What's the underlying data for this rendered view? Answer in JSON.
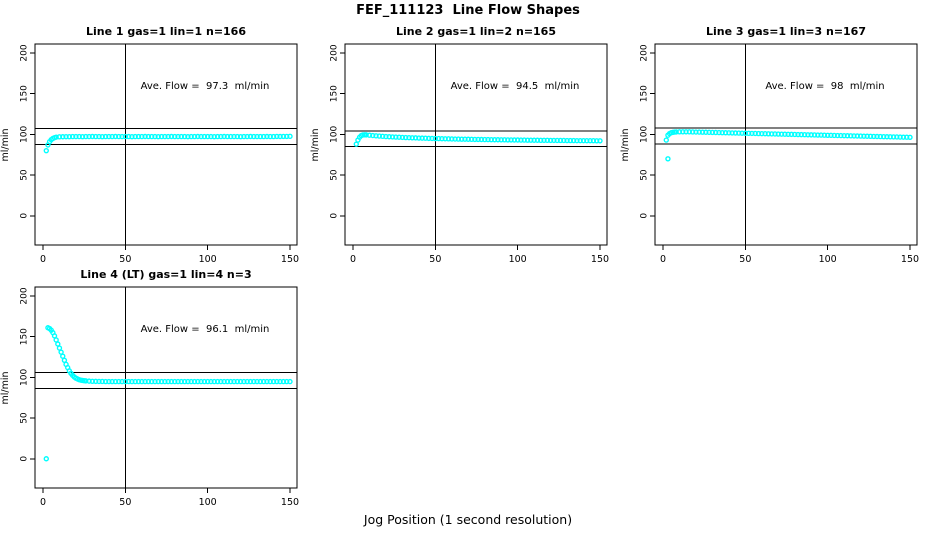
{
  "figure": {
    "title": "FEF_111123  Line Flow Shapes",
    "xlabel": "Jog Position (1 second resolution)",
    "background_color": "#ffffff",
    "line_color": "#000000",
    "point_color": "#00ffff",
    "legend": "none",
    "grid": "off"
  },
  "chart_data": [
    {
      "type": "scatter",
      "title": "Line 1 gas=1 lin=1 n=166",
      "ylabel": "ml/min",
      "annotation": "Ave. Flow =  97.3  ml/min",
      "ave_flow_ml_min": 97.3,
      "n": 166,
      "xticks": [
        0,
        50,
        100,
        150
      ],
      "yticks": [
        0,
        50,
        100,
        150,
        200
      ],
      "xlim": [
        -5,
        154
      ],
      "ylim": [
        -36,
        211
      ],
      "vline_x": 50,
      "hlines": [
        107.0,
        87.6
      ],
      "points": [
        [
          2,
          80
        ],
        [
          3,
          87
        ],
        [
          4,
          91
        ],
        [
          5,
          93.5
        ],
        [
          6,
          95
        ],
        [
          7,
          96
        ],
        [
          8,
          96.6
        ],
        [
          10,
          97
        ],
        [
          12,
          97.1
        ],
        [
          14,
          97.2
        ],
        [
          16,
          97.2
        ],
        [
          18,
          97.3
        ],
        [
          20,
          97.3
        ],
        [
          22,
          97.3
        ],
        [
          24,
          97.2
        ],
        [
          26,
          97.3
        ],
        [
          28,
          97.3
        ],
        [
          30,
          97.4
        ],
        [
          32,
          97.3
        ],
        [
          34,
          97.3
        ],
        [
          36,
          97.2
        ],
        [
          38,
          97.3
        ],
        [
          40,
          97.3
        ],
        [
          42,
          97.3
        ],
        [
          44,
          97.4
        ],
        [
          46,
          97.3
        ],
        [
          48,
          97.3
        ],
        [
          50,
          97.3
        ],
        [
          52,
          97.3
        ],
        [
          54,
          97.2
        ],
        [
          56,
          97.3
        ],
        [
          58,
          97.3
        ],
        [
          60,
          97.3
        ],
        [
          62,
          97.4
        ],
        [
          64,
          97.3
        ],
        [
          66,
          97.3
        ],
        [
          68,
          97.3
        ],
        [
          70,
          97.2
        ],
        [
          72,
          97.3
        ],
        [
          74,
          97.3
        ],
        [
          76,
          97.3
        ],
        [
          78,
          97.4
        ],
        [
          80,
          97.3
        ],
        [
          82,
          97.3
        ],
        [
          84,
          97.3
        ],
        [
          86,
          97.3
        ],
        [
          88,
          97.2
        ],
        [
          90,
          97.3
        ],
        [
          92,
          97.3
        ],
        [
          94,
          97.4
        ],
        [
          96,
          97.3
        ],
        [
          98,
          97.3
        ],
        [
          100,
          97.3
        ],
        [
          102,
          97.3
        ],
        [
          104,
          97.2
        ],
        [
          106,
          97.3
        ],
        [
          108,
          97.3
        ],
        [
          110,
          97.4
        ],
        [
          112,
          97.3
        ],
        [
          114,
          97.3
        ],
        [
          116,
          97.3
        ],
        [
          118,
          97.3
        ],
        [
          120,
          97.2
        ],
        [
          122,
          97.3
        ],
        [
          124,
          97.3
        ],
        [
          126,
          97.4
        ],
        [
          128,
          97.3
        ],
        [
          130,
          97.3
        ],
        [
          132,
          97.3
        ],
        [
          134,
          97.3
        ],
        [
          136,
          97.4
        ],
        [
          138,
          97.3
        ],
        [
          140,
          97.3
        ],
        [
          142,
          97.5
        ],
        [
          144,
          97.4
        ],
        [
          146,
          97.5
        ],
        [
          148,
          97.5
        ],
        [
          150,
          97.6
        ]
      ]
    },
    {
      "type": "scatter",
      "title": "Line 2 gas=1 lin=2 n=165",
      "ylabel": "ml/min",
      "annotation": "Ave. Flow =  94.5  ml/min",
      "ave_flow_ml_min": 94.5,
      "n": 165,
      "xticks": [
        0,
        50,
        100,
        150
      ],
      "yticks": [
        0,
        50,
        100,
        150,
        200
      ],
      "xlim": [
        -5,
        154
      ],
      "ylim": [
        -36,
        211
      ],
      "vline_x": 50,
      "hlines": [
        104.0,
        85.1
      ],
      "points": [
        [
          2,
          88
        ],
        [
          3,
          93
        ],
        [
          4,
          96.5
        ],
        [
          5,
          98.5
        ],
        [
          6,
          99.3
        ],
        [
          7,
          99.5
        ],
        [
          8,
          99.4
        ],
        [
          10,
          99
        ],
        [
          12,
          98.6
        ],
        [
          14,
          98.2
        ],
        [
          16,
          97.9
        ],
        [
          18,
          97.6
        ],
        [
          20,
          97.3
        ],
        [
          22,
          97.1
        ],
        [
          24,
          96.9
        ],
        [
          26,
          96.7
        ],
        [
          28,
          96.5
        ],
        [
          30,
          96.3
        ],
        [
          32,
          96.1
        ],
        [
          34,
          96
        ],
        [
          36,
          95.8
        ],
        [
          38,
          95.7
        ],
        [
          40,
          95.5
        ],
        [
          42,
          95.4
        ],
        [
          44,
          95.3
        ],
        [
          46,
          95.1
        ],
        [
          48,
          95
        ],
        [
          50,
          94.9
        ],
        [
          52,
          94.8
        ],
        [
          54,
          94.7
        ],
        [
          56,
          94.6
        ],
        [
          58,
          94.5
        ],
        [
          60,
          94.4
        ],
        [
          62,
          94.3
        ],
        [
          64,
          94.2
        ],
        [
          66,
          94.1
        ],
        [
          68,
          94.1
        ],
        [
          70,
          94
        ],
        [
          72,
          93.9
        ],
        [
          74,
          93.8
        ],
        [
          76,
          93.8
        ],
        [
          78,
          93.7
        ],
        [
          80,
          93.6
        ],
        [
          82,
          93.6
        ],
        [
          84,
          93.5
        ],
        [
          86,
          93.4
        ],
        [
          88,
          93.4
        ],
        [
          90,
          93.3
        ],
        [
          92,
          93.3
        ],
        [
          94,
          93.2
        ],
        [
          96,
          93.2
        ],
        [
          98,
          93.1
        ],
        [
          100,
          93.1
        ],
        [
          102,
          93
        ],
        [
          104,
          93
        ],
        [
          106,
          92.9
        ],
        [
          108,
          92.9
        ],
        [
          110,
          92.8
        ],
        [
          112,
          92.8
        ],
        [
          114,
          92.7
        ],
        [
          116,
          92.7
        ],
        [
          118,
          92.7
        ],
        [
          120,
          92.6
        ],
        [
          122,
          92.6
        ],
        [
          124,
          92.5
        ],
        [
          126,
          92.5
        ],
        [
          128,
          92.5
        ],
        [
          130,
          92.4
        ],
        [
          132,
          92.4
        ],
        [
          134,
          92.4
        ],
        [
          136,
          92.3
        ],
        [
          138,
          92.3
        ],
        [
          140,
          92.3
        ],
        [
          142,
          92.2
        ],
        [
          144,
          92.2
        ],
        [
          146,
          92.2
        ],
        [
          148,
          92.1
        ],
        [
          150,
          92.1
        ]
      ]
    },
    {
      "type": "scatter",
      "title": "Line 3 gas=1 lin=3 n=167",
      "ylabel": "ml/min",
      "annotation": "Ave. Flow =  98  ml/min",
      "ave_flow_ml_min": 98,
      "n": 167,
      "xticks": [
        0,
        50,
        100,
        150
      ],
      "yticks": [
        0,
        50,
        100,
        150,
        200
      ],
      "xlim": [
        -5,
        154
      ],
      "ylim": [
        -36,
        211
      ],
      "vline_x": 50,
      "hlines": [
        107.8,
        88.2
      ],
      "points": [
        [
          3,
          70
        ],
        [
          2,
          93
        ],
        [
          3,
          99
        ],
        [
          4,
          101
        ],
        [
          5,
          102
        ],
        [
          6,
          102.5
        ],
        [
          7,
          102.8
        ],
        [
          8,
          103
        ],
        [
          10,
          103.1
        ],
        [
          12,
          103.2
        ],
        [
          14,
          103.2
        ],
        [
          16,
          103.1
        ],
        [
          18,
          103
        ],
        [
          20,
          102.9
        ],
        [
          22,
          102.8
        ],
        [
          24,
          102.7
        ],
        [
          26,
          102.6
        ],
        [
          28,
          102.5
        ],
        [
          30,
          102.4
        ],
        [
          32,
          102.3
        ],
        [
          34,
          102.2
        ],
        [
          36,
          102.1
        ],
        [
          38,
          102
        ],
        [
          40,
          101.9
        ],
        [
          42,
          101.8
        ],
        [
          44,
          101.7
        ],
        [
          46,
          101.6
        ],
        [
          48,
          101.5
        ],
        [
          50,
          101.4
        ],
        [
          52,
          101.3
        ],
        [
          54,
          101.2
        ],
        [
          56,
          101.1
        ],
        [
          58,
          101
        ],
        [
          60,
          100.9
        ],
        [
          62,
          100.8
        ],
        [
          64,
          100.7
        ],
        [
          66,
          100.6
        ],
        [
          68,
          100.5
        ],
        [
          70,
          100.4
        ],
        [
          72,
          100.3
        ],
        [
          74,
          100.2
        ],
        [
          76,
          100.1
        ],
        [
          78,
          100
        ],
        [
          80,
          99.9
        ],
        [
          82,
          99.8
        ],
        [
          84,
          99.7
        ],
        [
          86,
          99.6
        ],
        [
          88,
          99.5
        ],
        [
          90,
          99.4
        ],
        [
          92,
          99.3
        ],
        [
          94,
          99.2
        ],
        [
          96,
          99.1
        ],
        [
          98,
          99
        ],
        [
          100,
          98.9
        ],
        [
          102,
          98.8
        ],
        [
          104,
          98.7
        ],
        [
          106,
          98.6
        ],
        [
          108,
          98.5
        ],
        [
          110,
          98.4
        ],
        [
          112,
          98.3
        ],
        [
          114,
          98.2
        ],
        [
          116,
          98.1
        ],
        [
          118,
          98
        ],
        [
          120,
          97.9
        ],
        [
          122,
          97.8
        ],
        [
          124,
          97.7
        ],
        [
          126,
          97.6
        ],
        [
          128,
          97.5
        ],
        [
          130,
          97.4
        ],
        [
          132,
          97.3
        ],
        [
          134,
          97.2
        ],
        [
          136,
          97.1
        ],
        [
          138,
          97
        ],
        [
          140,
          96.9
        ],
        [
          142,
          96.8
        ],
        [
          144,
          96.7
        ],
        [
          146,
          96.6
        ],
        [
          148,
          96.5
        ],
        [
          150,
          96.4
        ]
      ]
    },
    {
      "type": "scatter",
      "title": "Line 4 (LT) gas=1 lin=4 n=3",
      "ylabel": "ml/min",
      "annotation": "Ave. Flow =  96.1  ml/min",
      "ave_flow_ml_min": 96.1,
      "n": 3,
      "xticks": [
        0,
        50,
        100,
        150
      ],
      "yticks": [
        0,
        50,
        100,
        150,
        200
      ],
      "xlim": [
        -5,
        154
      ],
      "ylim": [
        -36,
        211
      ],
      "vline_x": 50,
      "hlines": [
        105.7,
        86.5
      ],
      "points": [
        [
          2,
          0
        ],
        [
          3,
          161
        ],
        [
          4,
          160
        ],
        [
          5,
          158
        ],
        [
          6,
          155
        ],
        [
          7,
          151
        ],
        [
          8,
          146
        ],
        [
          9,
          141
        ],
        [
          10,
          136
        ],
        [
          11,
          131
        ],
        [
          12,
          126
        ],
        [
          13,
          121
        ],
        [
          14,
          116
        ],
        [
          15,
          112
        ],
        [
          16,
          108
        ],
        [
          17,
          105
        ],
        [
          18,
          102.5
        ],
        [
          19,
          100.5
        ],
        [
          20,
          99
        ],
        [
          21,
          98
        ],
        [
          22,
          97.2
        ],
        [
          23,
          96.6
        ],
        [
          24,
          96.2
        ],
        [
          25,
          95.9
        ],
        [
          26,
          95.7
        ],
        [
          28,
          95.4
        ],
        [
          30,
          95.2
        ],
        [
          32,
          95.1
        ],
        [
          34,
          95
        ],
        [
          36,
          95
        ],
        [
          38,
          94.9
        ],
        [
          40,
          94.9
        ],
        [
          42,
          94.9
        ],
        [
          44,
          94.8
        ],
        [
          46,
          94.9
        ],
        [
          48,
          94.8
        ],
        [
          50,
          94.8
        ],
        [
          52,
          94.9
        ],
        [
          54,
          94.8
        ],
        [
          56,
          94.8
        ],
        [
          58,
          94.9
        ],
        [
          60,
          94.8
        ],
        [
          62,
          94.8
        ],
        [
          64,
          94.9
        ],
        [
          66,
          94.8
        ],
        [
          68,
          94.8
        ],
        [
          70,
          94.9
        ],
        [
          72,
          94.8
        ],
        [
          74,
          94.8
        ],
        [
          76,
          94.9
        ],
        [
          78,
          94.8
        ],
        [
          80,
          94.8
        ],
        [
          82,
          94.9
        ],
        [
          84,
          94.8
        ],
        [
          86,
          94.8
        ],
        [
          88,
          94.9
        ],
        [
          90,
          94.8
        ],
        [
          92,
          94.8
        ],
        [
          94,
          94.9
        ],
        [
          96,
          94.8
        ],
        [
          98,
          94.8
        ],
        [
          100,
          94.9
        ],
        [
          102,
          94.8
        ],
        [
          104,
          94.8
        ],
        [
          106,
          94.9
        ],
        [
          108,
          94.8
        ],
        [
          110,
          94.8
        ],
        [
          112,
          94.9
        ],
        [
          114,
          94.8
        ],
        [
          116,
          94.8
        ],
        [
          118,
          94.9
        ],
        [
          120,
          94.8
        ],
        [
          122,
          94.8
        ],
        [
          124,
          94.9
        ],
        [
          126,
          94.8
        ],
        [
          128,
          94.8
        ],
        [
          130,
          94.9
        ],
        [
          132,
          94.8
        ],
        [
          134,
          94.8
        ],
        [
          136,
          94.9
        ],
        [
          138,
          94.8
        ],
        [
          140,
          94.8
        ],
        [
          142,
          94.9
        ],
        [
          144,
          94.8
        ],
        [
          146,
          94.8
        ],
        [
          148,
          94.9
        ],
        [
          150,
          94.8
        ]
      ]
    }
  ]
}
